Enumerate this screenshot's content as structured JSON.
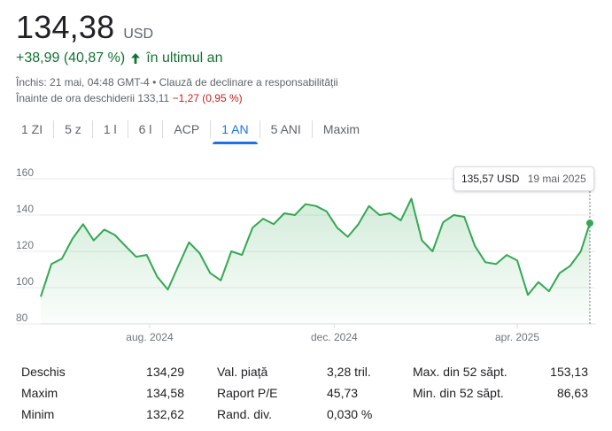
{
  "quote": {
    "price": "134,38",
    "currency": "USD",
    "change": "+38,99 (40,87 %)",
    "change_period": "în ultimul an",
    "closed_note": "Închis: 21 mai, 04:48 GMT-4 • Clauză de declinare a responsabilității",
    "premarket_label": "Înainte de ora deschiderii 133,11",
    "premarket_change": "−1,27 (0,95 %)",
    "positive_color": "#137333",
    "negative_color": "#c5221f"
  },
  "tabs": [
    {
      "label": "1 ZI"
    },
    {
      "label": "5 z"
    },
    {
      "label": "1 l"
    },
    {
      "label": "6 l"
    },
    {
      "label": "ACP"
    },
    {
      "label": "1 AN"
    },
    {
      "label": "5 ANI"
    },
    {
      "label": "Maxim"
    }
  ],
  "active_tab": "1 AN",
  "tooltip": {
    "value": "135,57 USD",
    "date": "19 mai 2025"
  },
  "chart_data": {
    "type": "area",
    "title": "",
    "xlabel": "",
    "ylabel": "",
    "ylim": [
      80,
      160
    ],
    "y_ticks": [
      "160",
      "140",
      "120",
      "100",
      "80"
    ],
    "x_ticks": [
      "aug. 2024",
      "dec. 2024",
      "apr. 2025"
    ],
    "grid": true,
    "line_color": "#34a853",
    "x": [
      "2024-05-21",
      "2024-05-28",
      "2024-06-04",
      "2024-06-11",
      "2024-06-18",
      "2024-06-25",
      "2024-07-02",
      "2024-07-09",
      "2024-07-16",
      "2024-07-23",
      "2024-07-30",
      "2024-08-06",
      "2024-08-13",
      "2024-08-20",
      "2024-08-27",
      "2024-09-03",
      "2024-09-10",
      "2024-09-17",
      "2024-09-24",
      "2024-10-01",
      "2024-10-08",
      "2024-10-15",
      "2024-10-22",
      "2024-10-29",
      "2024-11-05",
      "2024-11-12",
      "2024-11-19",
      "2024-11-26",
      "2024-12-03",
      "2024-12-10",
      "2024-12-17",
      "2024-12-24",
      "2024-12-31",
      "2025-01-07",
      "2025-01-14",
      "2025-01-21",
      "2025-01-28",
      "2025-02-04",
      "2025-02-11",
      "2025-02-18",
      "2025-02-25",
      "2025-03-04",
      "2025-03-11",
      "2025-03-18",
      "2025-03-25",
      "2025-04-01",
      "2025-04-08",
      "2025-04-15",
      "2025-04-22",
      "2025-04-29",
      "2025-05-06",
      "2025-05-13",
      "2025-05-19"
    ],
    "series": [
      {
        "values": [
          95,
          113,
          116,
          127,
          135,
          126,
          132,
          129,
          123,
          117,
          118,
          106,
          99,
          112,
          125,
          119,
          108,
          104,
          120,
          118,
          133,
          138,
          135,
          141,
          140,
          146,
          145,
          142,
          133,
          128,
          135,
          145,
          140,
          141,
          137,
          149,
          126,
          120,
          136,
          140,
          139,
          123,
          114,
          113,
          118,
          115,
          96,
          103,
          98,
          108,
          112,
          120,
          135.57
        ]
      }
    ]
  },
  "stats": {
    "col1": [
      {
        "label": "Deschis",
        "value": "134,29"
      },
      {
        "label": "Maxim",
        "value": "134,58"
      },
      {
        "label": "Minim",
        "value": "132,62"
      }
    ],
    "col2": [
      {
        "label": "Val. piață",
        "value": "3,28 tril."
      },
      {
        "label": "Raport P/E",
        "value": "45,73"
      },
      {
        "label": "Rand. div.",
        "value": "0,030 %"
      }
    ],
    "col3": [
      {
        "label": "Max. din 52 săpt.",
        "value": "153,13"
      },
      {
        "label": "Min. din 52 săpt.",
        "value": "86,63"
      }
    ]
  }
}
